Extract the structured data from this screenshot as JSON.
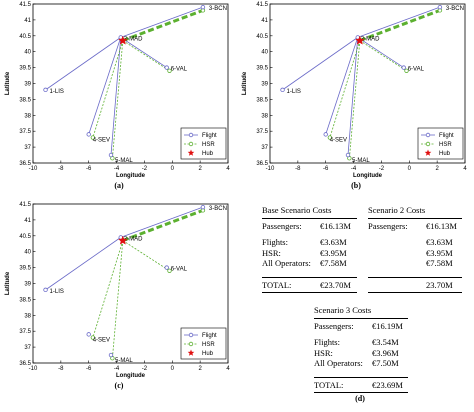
{
  "charts_common": {
    "xlabel": "Longitude",
    "ylabel": "Latitude",
    "xlim": [
      -10,
      4
    ],
    "ylim": [
      36.5,
      41.5
    ],
    "xticks": [
      -10,
      -8,
      -6,
      -4,
      -2,
      0,
      2,
      4
    ],
    "yticks": [
      36.5,
      37,
      37.5,
      38,
      38.5,
      39,
      39.5,
      40,
      40.5,
      41,
      41.5
    ],
    "colors": {
      "flight": "#6a6ac8",
      "hsr": "#5cb030",
      "hub": "#e01010"
    },
    "legend": [
      "Flight",
      "HSR",
      "Hub"
    ]
  },
  "chart_data": [
    {
      "type": "line",
      "caption": "(a)",
      "cities": [
        {
          "label": "1-LIS",
          "x": -9.1,
          "y": 38.8
        },
        {
          "label": "2-MAD",
          "x": -3.7,
          "y": 40.45
        },
        {
          "label": "3-BCN",
          "x": 2.2,
          "y": 41.4
        },
        {
          "label": "4-SEV",
          "x": -6.0,
          "y": 37.4
        },
        {
          "label": "5-MAL",
          "x": -4.4,
          "y": 36.75
        },
        {
          "label": "6-VAL",
          "x": -0.4,
          "y": 39.5
        }
      ],
      "hsr_ends": [
        {
          "x": 2.2,
          "y": 41.3
        },
        {
          "x": -5.7,
          "y": 37.3
        },
        {
          "x": -4.3,
          "y": 36.65
        },
        {
          "x": -0.2,
          "y": 39.4
        }
      ],
      "flights": [
        [
          1,
          2
        ],
        [
          2,
          3
        ],
        [
          2,
          4
        ],
        [
          2,
          5
        ],
        [
          2,
          6
        ]
      ],
      "hsr": [
        [
          2,
          3
        ],
        [
          2,
          4
        ],
        [
          2,
          5
        ],
        [
          2,
          6
        ]
      ],
      "thick_hsr": [
        2,
        3
      ],
      "hub": {
        "x": -3.55,
        "y": 40.35
      }
    },
    {
      "type": "line",
      "caption": "(b)",
      "cities": [
        {
          "label": "1-LIS",
          "x": -9.1,
          "y": 38.8
        },
        {
          "label": "2-MAD",
          "x": -3.7,
          "y": 40.45
        },
        {
          "label": "3-BCN",
          "x": 2.2,
          "y": 41.4
        },
        {
          "label": "4-SEV",
          "x": -6.0,
          "y": 37.4
        },
        {
          "label": "5-MAL",
          "x": -4.4,
          "y": 36.75
        },
        {
          "label": "6-VAL",
          "x": -0.4,
          "y": 39.5
        }
      ],
      "hsr_ends": [
        {
          "x": 2.2,
          "y": 41.3
        },
        {
          "x": -5.7,
          "y": 37.3
        },
        {
          "x": -4.3,
          "y": 36.65
        },
        {
          "x": -0.2,
          "y": 39.4
        }
      ],
      "flights": [
        [
          1,
          2
        ],
        [
          2,
          3
        ],
        [
          2,
          4
        ],
        [
          2,
          5
        ],
        [
          2,
          6
        ]
      ],
      "hsr": [
        [
          2,
          3
        ],
        [
          2,
          4
        ],
        [
          2,
          5
        ],
        [
          2,
          6
        ]
      ],
      "thick_hsr": [
        2,
        3
      ],
      "hub": {
        "x": -3.55,
        "y": 40.35
      }
    },
    {
      "type": "line",
      "caption": "(c)",
      "cities": [
        {
          "label": "1-LIS",
          "x": -9.1,
          "y": 38.8
        },
        {
          "label": "2-MAD",
          "x": -3.7,
          "y": 40.45
        },
        {
          "label": "3-BCN",
          "x": 2.2,
          "y": 41.4
        },
        {
          "label": "4-SEV",
          "x": -6.0,
          "y": 37.4
        },
        {
          "label": "5-MAL",
          "x": -4.4,
          "y": 36.75
        },
        {
          "label": "6-VAL",
          "x": -0.4,
          "y": 39.5
        }
      ],
      "hsr_ends": [
        {
          "x": 2.2,
          "y": 41.3
        },
        {
          "x": -5.7,
          "y": 37.3
        },
        {
          "x": -4.3,
          "y": 36.65
        },
        {
          "x": -0.2,
          "y": 39.4
        }
      ],
      "flights": [
        [
          1,
          2
        ],
        [
          2,
          3
        ]
      ],
      "hsr": [
        [
          2,
          3
        ],
        [
          2,
          4
        ],
        [
          2,
          5
        ],
        [
          2,
          6
        ]
      ],
      "thick_hsr": [
        2,
        3
      ],
      "hub": {
        "x": -3.55,
        "y": 40.35
      }
    }
  ],
  "table": {
    "caption": "(d)",
    "base": {
      "title": "Base Scenario Costs",
      "passengers_label": "Passengers:",
      "passengers": "€16.13M",
      "flights_label": "Flights:",
      "flights": "€3.63M",
      "hsr_label": "HSR:",
      "hsr": "€3.95M",
      "ops_label": "All Operators:",
      "ops": "€7.58M",
      "total_label": "TOTAL:",
      "total": "€23.70M"
    },
    "s2": {
      "title": "Scenario 2 Costs",
      "passengers_label": "Passengers:",
      "passengers": "€16.13M",
      "flights": "€3.63M",
      "hsr": "€3.95M",
      "ops": "€7.58M",
      "total": "23.70M"
    },
    "s3": {
      "title": "Scenario 3 Costs",
      "passengers_label": "Passengers:",
      "passengers": "€16.19M",
      "flights_label": "Flights:",
      "flights": "€3.54M",
      "hsr_label": "HSR:",
      "hsr": "€3.96M",
      "ops_label": "All Operators:",
      "ops": "€7.50M",
      "total_label": "TOTAL:",
      "total": "€23.69M"
    }
  }
}
